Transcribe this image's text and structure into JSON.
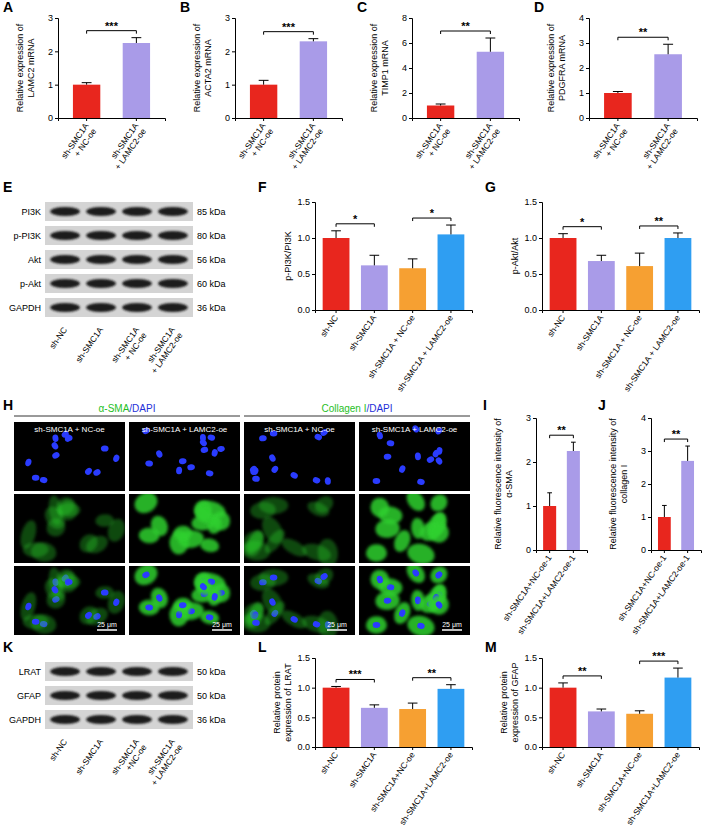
{
  "chart_data": [
    {
      "panel": "A",
      "type": "bar",
      "y_label": "Relative expression of LAMC2 mRNA",
      "categories": [
        "sh-SMC1A + NC-oe",
        "sh-SMC1A + LAMC2-oe"
      ],
      "values": [
        1.0,
        2.25
      ],
      "errors": [
        0.06,
        0.16
      ],
      "colors": [
        "#e8261e",
        "#a99be8"
      ],
      "ylim": [
        0,
        3
      ],
      "yticks": [
        0,
        1,
        2,
        3
      ],
      "annotations": [
        {
          "text": "***",
          "categories": [
            "sh-SMC1A + NC-oe",
            "sh-SMC1A + LAMC2-oe"
          ]
        }
      ]
    },
    {
      "panel": "B",
      "type": "bar",
      "y_label": "Relative expression of ACTA2 mRNA",
      "categories": [
        "sh-SMC1A + NC-oe",
        "sh-SMC1A + LAMC2-oe"
      ],
      "values": [
        1.0,
        2.3
      ],
      "errors": [
        0.13,
        0.08
      ],
      "colors": [
        "#e8261e",
        "#a99be8"
      ],
      "ylim": [
        0,
        3
      ],
      "yticks": [
        0,
        1,
        2,
        3
      ],
      "annotations": [
        {
          "text": "***",
          "categories": [
            "sh-SMC1A + NC-oe",
            "sh-SMC1A + LAMC2-oe"
          ]
        }
      ]
    },
    {
      "panel": "C",
      "type": "bar",
      "y_label": "Relative expression of TIMP1 mRNA",
      "categories": [
        "sh-SMC1A + NC-oe",
        "sh-SMC1A + LAMC2-oe"
      ],
      "values": [
        1.0,
        5.3
      ],
      "errors": [
        0.12,
        1.1
      ],
      "colors": [
        "#e8261e",
        "#a99be8"
      ],
      "ylim": [
        0,
        8
      ],
      "yticks": [
        0,
        2,
        4,
        6,
        8
      ],
      "annotations": [
        {
          "text": "**",
          "categories": [
            "sh-SMC1A + NC-oe",
            "sh-SMC1A + LAMC2-oe"
          ]
        }
      ]
    },
    {
      "panel": "D",
      "type": "bar",
      "y_label": "Relative expression of PDGFRA mRNA",
      "categories": [
        "sh-SMC1A + NC-oe",
        "sh-SMC1A + LAMC2-oe"
      ],
      "values": [
        1.0,
        2.55
      ],
      "errors": [
        0.06,
        0.4
      ],
      "colors": [
        "#e8261e",
        "#a99be8"
      ],
      "ylim": [
        0,
        4
      ],
      "yticks": [
        0,
        1,
        2,
        3,
        4
      ],
      "annotations": [
        {
          "text": "**",
          "categories": [
            "sh-SMC1A + NC-oe",
            "sh-SMC1A + LAMC2-oe"
          ]
        }
      ]
    },
    {
      "panel": "F",
      "type": "bar",
      "y_label": "p-PI3K/PI3K",
      "categories": [
        "sh-NC",
        "sh-SMC1A",
        "sh-SMC1A + NC-oe",
        "sh-SMC1A + LAMC2-oe"
      ],
      "values": [
        1.0,
        0.62,
        0.58,
        1.05
      ],
      "errors": [
        0.1,
        0.14,
        0.13,
        0.13
      ],
      "colors": [
        "#e8261e",
        "#a99be8",
        "#f6a032",
        "#2f9ef2"
      ],
      "ylim": [
        0,
        1.5
      ],
      "yticks": [
        {
          "value": 0,
          "label": "0.0"
        },
        {
          "value": 0.5,
          "label": "0.5"
        },
        {
          "value": 1,
          "label": "1.0"
        },
        {
          "value": 1.5,
          "label": "1.5"
        }
      ],
      "annotations": [
        {
          "text": "*",
          "categories": [
            "sh-NC",
            "sh-SMC1A"
          ]
        },
        {
          "text": "*",
          "categories": [
            "sh-SMC1A + NC-oe",
            "sh-SMC1A + LAMC2-oe"
          ]
        }
      ]
    },
    {
      "panel": "G",
      "type": "bar",
      "y_label": "p-Akt/Akt",
      "categories": [
        "sh-NC",
        "sh-SMC1A",
        "sh-SMC1A + NC-oe",
        "sh-SMC1A + LAMC2-oe"
      ],
      "values": [
        1.0,
        0.68,
        0.61,
        1.0
      ],
      "errors": [
        0.06,
        0.08,
        0.18,
        0.07
      ],
      "colors": [
        "#e8261e",
        "#a99be8",
        "#f6a032",
        "#2f9ef2"
      ],
      "ylim": [
        0,
        1.5
      ],
      "yticks": [
        {
          "value": 0,
          "label": "0.0"
        },
        {
          "value": 0.5,
          "label": "0.5"
        },
        {
          "value": 1,
          "label": "1.0"
        },
        {
          "value": 1.5,
          "label": "1.5"
        }
      ],
      "annotations": [
        {
          "text": "*",
          "categories": [
            "sh-NC",
            "sh-SMC1A"
          ]
        },
        {
          "text": "**",
          "categories": [
            "sh-SMC1A + NC-oe",
            "sh-SMC1A + LAMC2-oe"
          ]
        }
      ]
    },
    {
      "panel": "I",
      "type": "bar",
      "y_label": "Relative fluorescence intensity of α-SMA",
      "categories": [
        "sh-SMC1A+NC-oe-1",
        "sh-SMC1A+LAMC2-oe-1"
      ],
      "values": [
        1.0,
        2.25
      ],
      "errors": [
        0.3,
        0.2
      ],
      "colors": [
        "#e8261e",
        "#a99be8"
      ],
      "ylim": [
        0,
        3
      ],
      "yticks": [
        0,
        1,
        2,
        3
      ],
      "annotations": [
        {
          "text": "**",
          "categories": [
            "sh-SMC1A+NC-oe-1",
            "sh-SMC1A+LAMC2-oe-1"
          ]
        }
      ]
    },
    {
      "panel": "J",
      "type": "bar",
      "y_label": "Relative fluorescence intensity of collagen I",
      "categories": [
        "sh-SMC1A+NC-oe-1",
        "sh-SMC1A+LAMC2-oe-1"
      ],
      "values": [
        1.0,
        2.7
      ],
      "errors": [
        0.35,
        0.45
      ],
      "colors": [
        "#e8261e",
        "#a99be8"
      ],
      "ylim": [
        0,
        4
      ],
      "yticks": [
        0,
        1,
        2,
        3,
        4
      ],
      "annotations": [
        {
          "text": "**",
          "categories": [
            "sh-SMC1A+NC-oe-1",
            "sh-SMC1A+LAMC2-oe-1"
          ]
        }
      ]
    },
    {
      "panel": "L",
      "type": "bar",
      "y_label": "Relative protein expression of LRAT",
      "categories": [
        "sh-NC",
        "sh-SMC1A",
        "sh-SMC1A+NC-oe",
        "sh-SMC1A+LAMC2-oe"
      ],
      "values": [
        1.0,
        0.66,
        0.64,
        0.98
      ],
      "errors": [
        0.02,
        0.05,
        0.1,
        0.07
      ],
      "colors": [
        "#e8261e",
        "#a99be8",
        "#f6a032",
        "#2f9ef2"
      ],
      "ylim": [
        0,
        1.5
      ],
      "yticks": [
        {
          "value": 0,
          "label": "0.0"
        },
        {
          "value": 0.5,
          "label": "0.5"
        },
        {
          "value": 1,
          "label": "1.0"
        },
        {
          "value": 1.5,
          "label": "1.5"
        }
      ],
      "annotations": [
        {
          "text": "***",
          "categories": [
            "sh-NC",
            "sh-SMC1A"
          ]
        },
        {
          "text": "**",
          "categories": [
            "sh-SMC1A+NC-oe",
            "sh-SMC1A+LAMC2-oe"
          ]
        }
      ]
    },
    {
      "panel": "M",
      "type": "bar",
      "y_label": "Relative protein expression of GFAP",
      "categories": [
        "sh-NC",
        "sh-SMC1A",
        "sh-SMC1A+NC-oe",
        "sh-SMC1A+LAMC2-oe"
      ],
      "values": [
        1.0,
        0.6,
        0.56,
        1.17
      ],
      "errors": [
        0.08,
        0.04,
        0.05,
        0.16
      ],
      "colors": [
        "#e8261e",
        "#a99be8",
        "#f6a032",
        "#2f9ef2"
      ],
      "ylim": [
        0,
        1.5
      ],
      "yticks": [
        {
          "value": 0,
          "label": "0.0"
        },
        {
          "value": 0.5,
          "label": "0.5"
        },
        {
          "value": 1,
          "label": "1.0"
        },
        {
          "value": 1.5,
          "label": "1.5"
        }
      ],
      "annotations": [
        {
          "text": "**",
          "categories": [
            "sh-NC",
            "sh-SMC1A"
          ]
        },
        {
          "text": "***",
          "categories": [
            "sh-SMC1A+NC-oe",
            "sh-SMC1A+LAMC2-oe"
          ]
        }
      ]
    }
  ],
  "blots": [
    {
      "panel": "E",
      "lanes": [
        "sh-NC",
        "sh-SMC1A",
        "sh-SMC1A + NC-oe",
        "sh-SMC1A + LAMC2-oe"
      ],
      "rows": [
        {
          "label": "PI3K",
          "size": "85 kDa"
        },
        {
          "label": "p-PI3K",
          "size": "80 kDa"
        },
        {
          "label": "Akt",
          "size": "56 kDa"
        },
        {
          "label": "p-Akt",
          "size": "60 kDa"
        },
        {
          "label": "GAPDH",
          "size": "36 kDa"
        }
      ]
    },
    {
      "panel": "K",
      "lanes": [
        "sh-NC",
        "sh-SMC1A",
        "sh-SMC1A +NC-oe",
        "sh-SMC1A + LAMC2-oe"
      ],
      "rows": [
        {
          "label": "LRAT",
          "size": "50 kDa"
        },
        {
          "label": "GFAP",
          "size": "50 kDa"
        },
        {
          "label": "GAPDH",
          "size": "36 kDa"
        }
      ]
    }
  ],
  "images": {
    "panel": "H",
    "scale_bar": "25 μm",
    "groups": [
      {
        "header": [
          {
            "text": "α-SMA",
            "color": "#1fbf1f"
          },
          {
            "text": "/DAPI",
            "color": "#1f2fd9"
          }
        ],
        "columns": [
          "sh-SMC1A + NC-oe",
          "sh-SMC1A + LAMC2-oe"
        ]
      },
      {
        "header": [
          {
            "text": "Collagen I",
            "color": "#1fbf1f"
          },
          {
            "text": "/DAPI",
            "color": "#1f2fd9"
          }
        ],
        "columns": [
          "sh-SMC1A + NC-oe",
          "sh-SMC1A + LAMC2-oe"
        ]
      }
    ]
  }
}
